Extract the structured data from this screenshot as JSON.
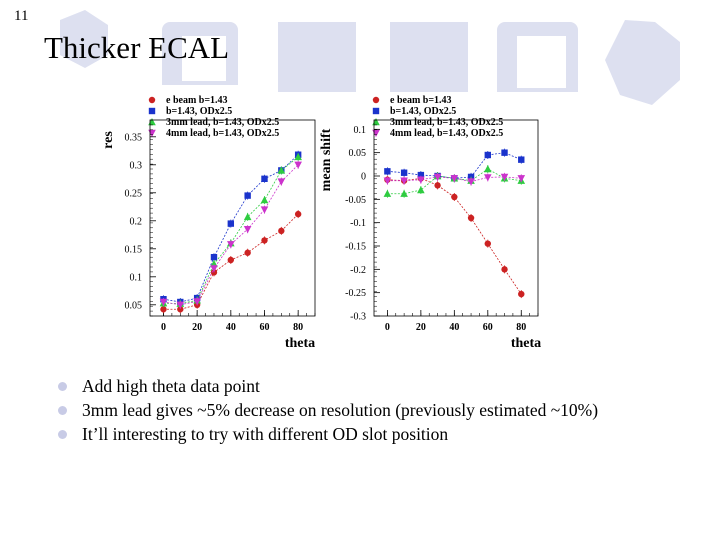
{
  "slide_number": "11",
  "title": "Thicker ECAL",
  "bullets": [
    "Add high theta data point",
    "3mm lead gives ~5% decrease on resolution (previously estimated ~10%)",
    "It’ll interesting to try with different OD slot position"
  ],
  "colors": {
    "series": [
      "#cc2222",
      "#1a33cc",
      "#2ecc40",
      "#cc33cc"
    ],
    "deco": "#dde0f0",
    "bullet": "#c8cbe6"
  },
  "chart_data": [
    {
      "type": "line",
      "ylabel": "res",
      "xlabel": "theta",
      "xlim": [
        -8,
        90
      ],
      "ylim": [
        0.03,
        0.38
      ],
      "xticks": [
        "0",
        "20",
        "40",
        "60",
        "80"
      ],
      "yticks": [
        "0.05",
        "0.1",
        "0.15",
        "0.2",
        "0.25",
        "0.3",
        "0.35"
      ],
      "legend": [
        "e beam b=1.43",
        "b=1.43, ODx2.5",
        "3mm lead, b=1.43, ODx2.5",
        "4mm lead, b=1.43, ODx2.5"
      ],
      "series": [
        {
          "name": "e beam b=1.43",
          "marker": "circle",
          "x": [
            0,
            10,
            20,
            30,
            40,
            50,
            60,
            70,
            80
          ],
          "y": [
            0.042,
            0.042,
            0.05,
            0.108,
            0.13,
            0.143,
            0.165,
            0.182,
            0.212
          ]
        },
        {
          "name": "b=1.43, ODx2.5",
          "marker": "square",
          "x": [
            0,
            10,
            20,
            30,
            40,
            50,
            60,
            70,
            80
          ],
          "y": [
            0.06,
            0.055,
            0.062,
            0.135,
            0.195,
            0.245,
            0.275,
            0.29,
            0.318
          ]
        },
        {
          "name": "3mm lead, b=1.43, ODx2.5",
          "marker": "triangle-up",
          "x": [
            0,
            10,
            20,
            30,
            40,
            50,
            60,
            70,
            80
          ],
          "y": [
            0.053,
            0.052,
            0.058,
            0.123,
            0.16,
            0.207,
            0.237,
            0.29,
            0.314
          ]
        },
        {
          "name": "4mm lead, b=1.43, ODx2.5",
          "marker": "triangle-down",
          "x": [
            0,
            10,
            20,
            30,
            40,
            50,
            60,
            70,
            80
          ],
          "y": [
            0.055,
            0.05,
            0.056,
            0.115,
            0.158,
            0.185,
            0.22,
            0.27,
            0.3
          ]
        }
      ]
    },
    {
      "type": "line",
      "ylabel": "mean shift",
      "xlabel": "theta",
      "xlim": [
        -8,
        90
      ],
      "ylim": [
        -0.3,
        0.12
      ],
      "xticks": [
        "0",
        "20",
        "40",
        "60",
        "80"
      ],
      "yticks": [
        "0.1",
        "0.05",
        "0",
        "-0.05",
        "-0.1",
        "-0.15",
        "-0.2",
        "-0.25",
        "-0.3"
      ],
      "legend": [
        "e beam b=1.43",
        "b=1.43, ODx2.5",
        "3mm lead, b=1.43, ODx2.5",
        "4mm lead, b=1.43, ODx2.5"
      ],
      "series": [
        {
          "name": "e beam b=1.43",
          "marker": "circle",
          "x": [
            0,
            10,
            20,
            30,
            40,
            50,
            60,
            70,
            80
          ],
          "y": [
            -0.008,
            -0.01,
            -0.005,
            -0.02,
            -0.045,
            -0.09,
            -0.145,
            -0.2,
            -0.253
          ]
        },
        {
          "name": "b=1.43, ODx2.5",
          "marker": "square",
          "x": [
            0,
            10,
            20,
            30,
            40,
            50,
            60,
            70,
            80
          ],
          "y": [
            0.01,
            0.007,
            0.002,
            0.0,
            -0.005,
            -0.002,
            0.045,
            0.05,
            0.035
          ]
        },
        {
          "name": "3mm lead, b=1.43, ODx2.5",
          "marker": "triangle-up",
          "x": [
            0,
            10,
            20,
            30,
            40,
            50,
            60,
            70,
            80
          ],
          "y": [
            -0.038,
            -0.038,
            -0.03,
            0.0,
            -0.005,
            -0.01,
            0.015,
            -0.005,
            -0.01
          ]
        },
        {
          "name": "4mm lead, b=1.43, ODx2.5",
          "marker": "triangle-down",
          "x": [
            0,
            10,
            20,
            30,
            40,
            50,
            60,
            70,
            80
          ],
          "y": [
            -0.01,
            -0.01,
            -0.008,
            -0.002,
            -0.005,
            -0.012,
            -0.003,
            -0.002,
            -0.005
          ]
        }
      ]
    }
  ]
}
